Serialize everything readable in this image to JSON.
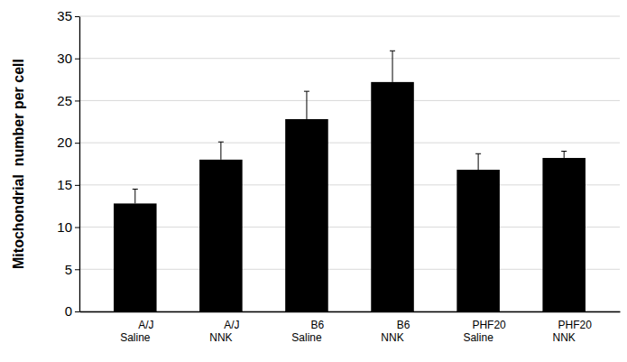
{
  "chart_data": {
    "type": "bar",
    "y_label": "Mitochondrial  number per cell",
    "categories": [
      "A/J\nSaline",
      "A/J\nNNK",
      "B6\nSaline",
      "B6\nNNK",
      "PHF20\nSaline",
      "PHF20\nNNK"
    ],
    "values": [
      12.8,
      18.0,
      22.8,
      27.2,
      16.8,
      18.2
    ],
    "errors": [
      1.7,
      2.1,
      3.3,
      3.7,
      1.9,
      0.8
    ],
    "color": "#000000",
    "ylim": [
      0,
      35
    ],
    "yticks": [
      0,
      5,
      10,
      15,
      20,
      25,
      30,
      35
    ],
    "grid": true
  }
}
